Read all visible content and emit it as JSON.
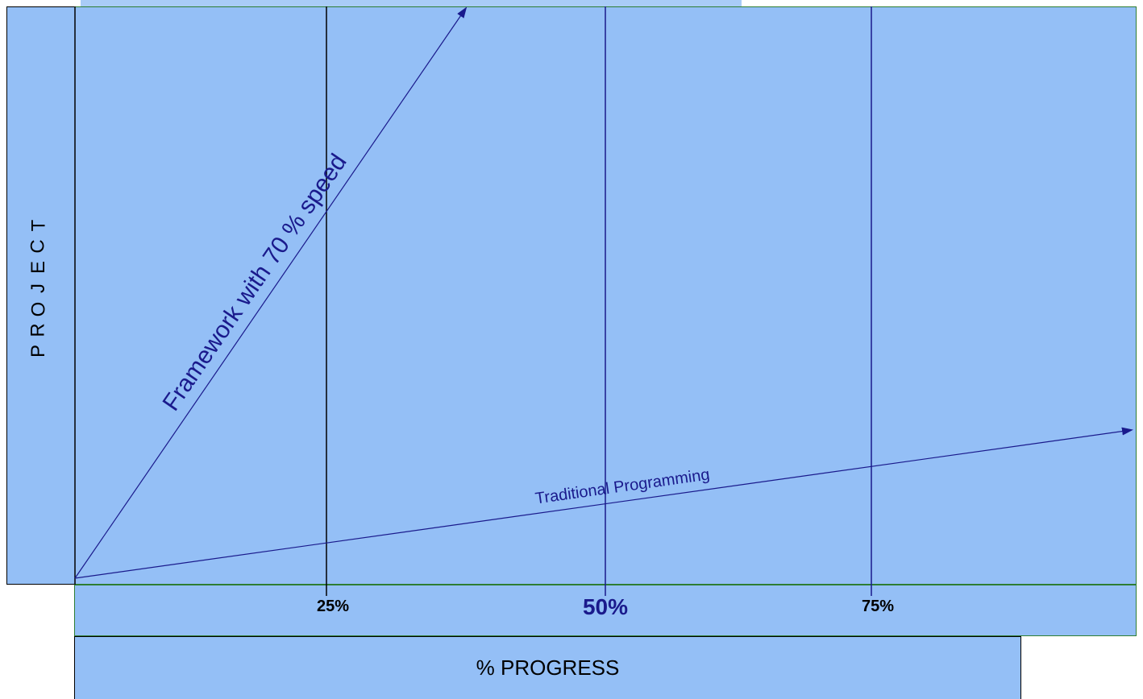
{
  "diagram": {
    "y_axis_label": "PROJECT",
    "x_axis_title": "% PROGRESS",
    "ticks": [
      {
        "label": "25%",
        "value": 25,
        "major": false
      },
      {
        "label": "50%",
        "value": 50,
        "major": true
      },
      {
        "label": "75%",
        "value": 75,
        "major": false
      }
    ],
    "arrows": [
      {
        "label": "Framework with 70 % speed",
        "from": [
          0,
          0
        ],
        "to": [
          37,
          100
        ]
      },
      {
        "label": "Traditional Programming",
        "from": [
          0,
          0
        ],
        "to": [
          100,
          26
        ]
      }
    ],
    "colors": {
      "panel": "#94bff6",
      "arrow": "#1a1a8c",
      "gridline_dark": "#000000",
      "gridline_blue": "#1a1a8c",
      "border_green": "#2e7d32"
    }
  }
}
